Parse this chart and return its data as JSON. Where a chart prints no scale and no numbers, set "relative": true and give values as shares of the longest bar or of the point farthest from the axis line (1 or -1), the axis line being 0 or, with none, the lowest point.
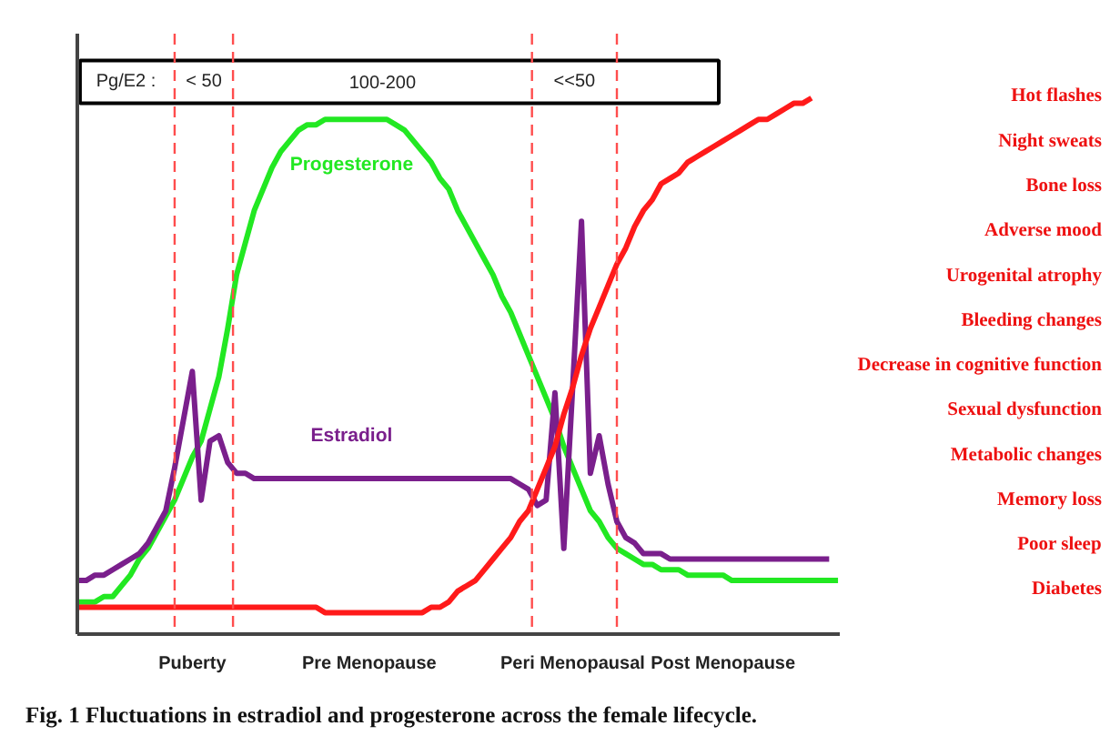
{
  "chart_data": {
    "type": "line",
    "title": "Fig. 1 Fluctuations in estradiol and progesterone  across the female lifecycle.",
    "relative": true,
    "categories": [
      null,
      null,
      null,
      null,
      null,
      null,
      null,
      null,
      null,
      null,
      null,
      null,
      null,
      "Puberty",
      null,
      null,
      null,
      null,
      null,
      null,
      null,
      null,
      null,
      null,
      null,
      null,
      null,
      null,
      null,
      null,
      null,
      null,
      null,
      "Pre Menopause",
      null,
      null,
      null,
      null,
      null,
      null,
      null,
      null,
      null,
      null,
      null,
      null,
      null,
      null,
      null,
      null,
      null,
      null,
      null,
      null,
      null,
      null,
      "Peri Menopausal",
      null,
      null,
      null,
      null,
      null,
      null,
      null,
      null,
      null,
      null,
      null,
      null,
      null,
      null,
      null,
      null,
      "Post Menopause",
      null,
      null,
      null,
      null,
      null,
      null,
      null,
      null,
      null,
      null,
      null,
      null,
      null
    ],
    "grid": false,
    "marker": "none",
    "line_style": "solid",
    "series": [
      {
        "name": "Progesterone",
        "color": "#22e822",
        "values": [
          0.06,
          0.06,
          0.06,
          0.07,
          0.07,
          0.09,
          0.11,
          0.14,
          0.16,
          0.19,
          0.22,
          0.25,
          0.29,
          0.33,
          0.36,
          0.42,
          0.48,
          0.57,
          0.67,
          0.73,
          0.79,
          0.83,
          0.87,
          0.9,
          0.92,
          0.94,
          0.95,
          0.95,
          0.96,
          0.96,
          0.96,
          0.96,
          0.96,
          0.96,
          0.96,
          0.96,
          0.95,
          0.94,
          0.92,
          0.9,
          0.88,
          0.85,
          0.83,
          0.79,
          0.76,
          0.73,
          0.7,
          0.67,
          0.63,
          0.6,
          0.56,
          0.52,
          0.48,
          0.44,
          0.4,
          0.35,
          0.31,
          0.27,
          0.23,
          0.21,
          0.18,
          0.16,
          0.15,
          0.14,
          0.13,
          0.13,
          0.12,
          0.12,
          0.12,
          0.11,
          0.11,
          0.11,
          0.11,
          0.11,
          0.1,
          0.1,
          0.1,
          0.1,
          0.1,
          0.1,
          0.1,
          0.1,
          0.1,
          0.1,
          0.1,
          0.1,
          0.1
        ]
      },
      {
        "name": "Estradiol",
        "color": "#7a1f8c",
        "values": [
          0.1,
          0.1,
          0.11,
          0.11,
          0.12,
          0.13,
          0.14,
          0.15,
          0.17,
          0.2,
          0.23,
          0.31,
          0.4,
          0.49,
          0.25,
          0.36,
          0.37,
          0.32,
          0.3,
          0.3,
          0.29,
          0.29,
          0.29,
          0.29,
          0.29,
          0.29,
          0.29,
          0.29,
          0.29,
          0.29,
          0.29,
          0.29,
          0.29,
          0.29,
          0.29,
          0.29,
          0.29,
          0.29,
          0.29,
          0.29,
          0.29,
          0.29,
          0.29,
          0.29,
          0.29,
          0.29,
          0.29,
          0.29,
          0.29,
          0.29,
          0.28,
          0.27,
          0.24,
          0.25,
          0.45,
          0.16,
          0.46,
          0.77,
          0.3,
          0.37,
          0.28,
          0.21,
          0.18,
          0.17,
          0.15,
          0.15,
          0.15,
          0.14,
          0.14,
          0.14,
          0.14,
          0.14,
          0.14,
          0.14,
          0.14,
          0.14,
          0.14,
          0.14,
          0.14,
          0.14,
          0.14,
          0.14,
          0.14,
          0.14,
          0.14,
          0.14,
          null
        ]
      },
      {
        "color": "#ff1a1a",
        "values": [
          0.05,
          0.05,
          0.05,
          0.05,
          0.05,
          0.05,
          0.05,
          0.05,
          0.05,
          0.05,
          0.05,
          0.05,
          0.05,
          0.05,
          0.05,
          0.05,
          0.05,
          0.05,
          0.05,
          0.05,
          0.05,
          0.05,
          0.05,
          0.05,
          0.05,
          0.05,
          0.05,
          0.05,
          0.04,
          0.04,
          0.04,
          0.04,
          0.04,
          0.04,
          0.04,
          0.04,
          0.04,
          0.04,
          0.04,
          0.04,
          0.05,
          0.05,
          0.06,
          0.08,
          0.09,
          0.1,
          0.12,
          0.14,
          0.16,
          0.18,
          0.21,
          0.23,
          0.27,
          0.31,
          0.35,
          0.41,
          0.46,
          0.52,
          0.57,
          0.61,
          0.65,
          0.69,
          0.72,
          0.76,
          0.79,
          0.81,
          0.84,
          0.85,
          0.86,
          0.88,
          0.89,
          0.9,
          0.91,
          0.92,
          0.93,
          0.94,
          0.95,
          0.96,
          0.96,
          0.97,
          0.98,
          0.99,
          0.99,
          1.0,
          null,
          null,
          null
        ]
      }
    ],
    "annotations": [
      "Pg/E2 :",
      "< 50",
      "100-200",
      "<<50",
      "Hot flashes",
      "Night sweats",
      "Bone loss",
      "Adverse mood",
      "Urogenital atrophy",
      "Bleeding changes",
      "Decrease in cognitive function",
      "Sexual dysfunction",
      "Metabolic changes",
      "Memory loss",
      "Poor sleep",
      "Diabetes"
    ]
  }
}
